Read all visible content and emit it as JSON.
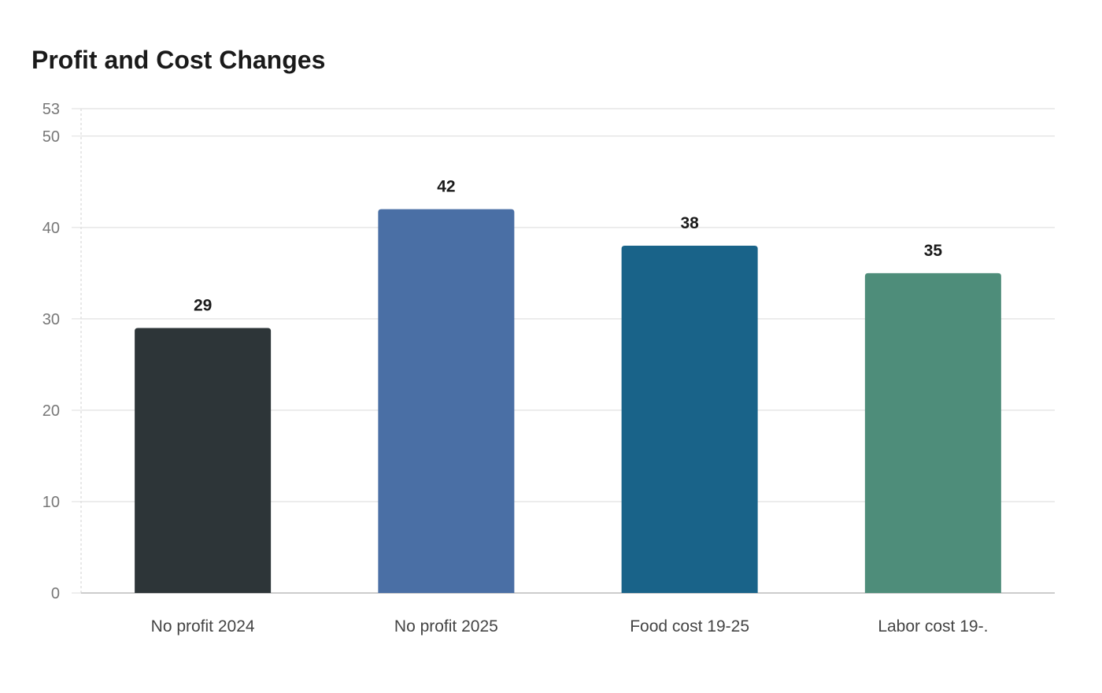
{
  "chart_data": {
    "type": "bar",
    "title": "Profit and Cost Changes",
    "xlabel": "",
    "ylabel": "",
    "categories": [
      "No profit 2024",
      "No profit 2025",
      "Food cost 19-25",
      "Labor cost 19-."
    ],
    "values": [
      29,
      42,
      38,
      35
    ],
    "data_labels": [
      "29",
      "42",
      "38",
      "35"
    ],
    "colors": [
      "#2d3538",
      "#4a6fa5",
      "#196389",
      "#4e8d7a"
    ],
    "ylim": [
      0,
      53
    ],
    "yticks": [
      0,
      10,
      20,
      30,
      40,
      50,
      53
    ],
    "grid": true,
    "legend": "none"
  }
}
